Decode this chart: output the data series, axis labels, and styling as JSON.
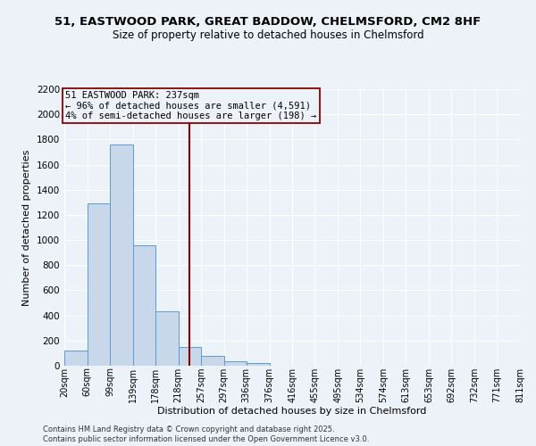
{
  "title": "51, EASTWOOD PARK, GREAT BADDOW, CHELMSFORD, CM2 8HF",
  "subtitle": "Size of property relative to detached houses in Chelmsford",
  "xlabel": "Distribution of detached houses by size in Chelmsford",
  "ylabel": "Number of detached properties",
  "bin_edges": [
    20,
    60,
    99,
    139,
    178,
    218,
    257,
    297,
    336,
    376,
    416,
    455,
    495,
    534,
    574,
    613,
    653,
    692,
    732,
    771,
    811
  ],
  "bin_labels": [
    "20sqm",
    "60sqm",
    "99sqm",
    "139sqm",
    "178sqm",
    "218sqm",
    "257sqm",
    "297sqm",
    "336sqm",
    "376sqm",
    "416sqm",
    "455sqm",
    "495sqm",
    "534sqm",
    "574sqm",
    "613sqm",
    "653sqm",
    "692sqm",
    "732sqm",
    "771sqm",
    "811sqm"
  ],
  "bar_heights": [
    120,
    1290,
    1760,
    960,
    430,
    150,
    75,
    35,
    20,
    0,
    0,
    0,
    0,
    0,
    0,
    0,
    0,
    0,
    0,
    0
  ],
  "bar_color": "#c8d8ea",
  "bar_edge_color": "#5b9bd5",
  "property_line_x": 237,
  "property_line_color": "#8b0000",
  "annotation_title": "51 EASTWOOD PARK: 237sqm",
  "annotation_line1": "← 96% of detached houses are smaller (4,591)",
  "annotation_line2": "4% of semi-detached houses are larger (198) →",
  "yticks": [
    0,
    200,
    400,
    600,
    800,
    1000,
    1200,
    1400,
    1600,
    1800,
    2000,
    2200
  ],
  "ylim": [
    0,
    2200
  ],
  "background_color": "#edf2f9",
  "grid_color": "#ffffff",
  "footer1": "Contains HM Land Registry data © Crown copyright and database right 2025.",
  "footer2": "Contains public sector information licensed under the Open Government Licence v3.0."
}
